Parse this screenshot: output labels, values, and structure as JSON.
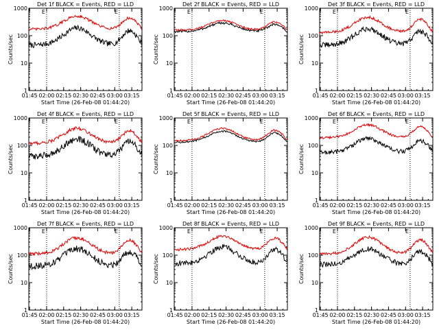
{
  "chart_data": [
    {
      "type": "line",
      "title": "Det 1f BLACK = Events, RED = LLD",
      "detector": "1f",
      "xlabel": "Start Time (26-Feb-08 01:44:20)",
      "ylabel": "Counts/sec",
      "x_ticks": [
        "01:45",
        "02:00",
        "02:15",
        "02:30",
        "02:45",
        "03:00",
        "03:15"
      ],
      "y_ticks": [
        "1",
        "10",
        "100",
        "1000"
      ],
      "yscale": "log",
      "ylim": [
        1,
        1000
      ],
      "xlim": [
        "01:44:20",
        "03:24:00"
      ],
      "markers": [
        "02:00",
        "03:04"
      ],
      "marker_labels": [
        "E",
        "E"
      ],
      "series": [
        {
          "name": "Events",
          "color": "#000000",
          "base": 45,
          "peak": 190,
          "noise": 0.1
        },
        {
          "name": "LLD",
          "color": "#e00000",
          "base": 170,
          "peak": 520,
          "noise": 0.05
        }
      ]
    },
    {
      "type": "line",
      "title": "Det 2f BLACK = Events, RED = LLD",
      "detector": "2f",
      "xlabel": "Start Time (26-Feb-08 01:44:20)",
      "ylabel": "Counts/sec",
      "x_ticks": [
        "01:45",
        "02:00",
        "02:15",
        "02:30",
        "02:45",
        "03:00",
        "03:15"
      ],
      "y_ticks": [
        "1",
        "10",
        "100",
        "1000"
      ],
      "yscale": "log",
      "ylim": [
        1,
        1000
      ],
      "xlim": [
        "01:44:20",
        "03:24:00"
      ],
      "markers": [
        "02:00",
        "03:04"
      ],
      "marker_labels": [
        "E",
        "E"
      ],
      "series": [
        {
          "name": "Events",
          "color": "#000000",
          "base": 140,
          "peak": 290,
          "noise": 0.04
        },
        {
          "name": "LLD",
          "color": "#e00000",
          "base": 160,
          "peak": 360,
          "noise": 0.03
        }
      ]
    },
    {
      "type": "line",
      "title": "Det 3f BLACK = Events, RED = LLD",
      "detector": "3f",
      "xlabel": "Start Time (26-Feb-08 01:44:20)",
      "ylabel": "Counts/sec",
      "x_ticks": [
        "01:45",
        "02:00",
        "02:15",
        "02:30",
        "02:45",
        "03:00",
        "03:15"
      ],
      "y_ticks": [
        "1",
        "10",
        "100",
        "1000"
      ],
      "yscale": "log",
      "ylim": [
        1,
        1000
      ],
      "xlim": [
        "01:44:20",
        "03:24:00"
      ],
      "markers": [
        "02:00",
        "03:04"
      ],
      "marker_labels": [
        "E",
        "E"
      ],
      "series": [
        {
          "name": "Events",
          "color": "#000000",
          "base": 45,
          "peak": 180,
          "noise": 0.1
        },
        {
          "name": "LLD",
          "color": "#e00000",
          "base": 130,
          "peak": 470,
          "noise": 0.05
        }
      ]
    },
    {
      "type": "line",
      "title": "Det 4f BLACK = Events, RED = LLD",
      "detector": "4f",
      "xlabel": "Start Time (26-Feb-08 01:44:20)",
      "ylabel": "Counts/sec",
      "x_ticks": [
        "01:45",
        "02:00",
        "02:15",
        "02:30",
        "02:45",
        "03:00",
        "03:15"
      ],
      "y_ticks": [
        "1",
        "10",
        "100",
        "1000"
      ],
      "yscale": "log",
      "ylim": [
        1,
        1000
      ],
      "xlim": [
        "01:44:20",
        "03:24:00"
      ],
      "markers": [
        "02:00",
        "03:04"
      ],
      "marker_labels": [
        "E",
        "E"
      ],
      "series": [
        {
          "name": "Events",
          "color": "#000000",
          "base": 40,
          "peak": 170,
          "noise": 0.12
        },
        {
          "name": "LLD",
          "color": "#e00000",
          "base": 120,
          "peak": 420,
          "noise": 0.06
        }
      ]
    },
    {
      "type": "line",
      "title": "Det 5f BLACK = Events, RED = LLD",
      "detector": "5f",
      "xlabel": "Start Time (26-Feb-08 01:44:20)",
      "ylabel": "Counts/sec",
      "x_ticks": [
        "01:45",
        "02:00",
        "02:15",
        "02:30",
        "02:45",
        "03:00",
        "03:15"
      ],
      "y_ticks": [
        "1",
        "10",
        "100",
        "1000"
      ],
      "yscale": "log",
      "ylim": [
        1,
        1000
      ],
      "xlim": [
        "01:44:20",
        "03:24:00"
      ],
      "markers": [
        "02:00",
        "03:04"
      ],
      "marker_labels": [
        "E",
        "E"
      ],
      "series": [
        {
          "name": "Events",
          "color": "#000000",
          "base": 130,
          "peak": 330,
          "noise": 0.03
        },
        {
          "name": "LLD",
          "color": "#e00000",
          "base": 150,
          "peak": 420,
          "noise": 0.03
        }
      ]
    },
    {
      "type": "line",
      "title": "Det 6f BLACK = Events, RED = LLD",
      "detector": "6f",
      "xlabel": "Start Time (26-Feb-08 01:44:20)",
      "ylabel": "Counts/sec",
      "x_ticks": [
        "01:45",
        "02:00",
        "02:15",
        "02:30",
        "02:45",
        "03:00",
        "03:15"
      ],
      "y_ticks": [
        "1",
        "10",
        "100",
        "1000"
      ],
      "yscale": "log",
      "ylim": [
        1,
        1000
      ],
      "xlim": [
        "01:44:20",
        "03:24:00"
      ],
      "markers": [
        "02:00",
        "03:04"
      ],
      "marker_labels": [
        "E",
        "E"
      ],
      "series": [
        {
          "name": "Events",
          "color": "#000000",
          "base": 55,
          "peak": 180,
          "noise": 0.08
        },
        {
          "name": "LLD",
          "color": "#e00000",
          "base": 190,
          "peak": 560,
          "noise": 0.04
        }
      ]
    },
    {
      "type": "line",
      "title": "Det 7f BLACK = Events, RED = LLD",
      "detector": "7f",
      "xlabel": "Start Time (26-Feb-08 01:44:20)",
      "ylabel": "Counts/sec",
      "x_ticks": [
        "01:45",
        "02:00",
        "02:15",
        "02:30",
        "02:45",
        "03:00",
        "03:15"
      ],
      "y_ticks": [
        "1",
        "10",
        "100",
        "1000"
      ],
      "yscale": "log",
      "ylim": [
        1,
        1000
      ],
      "xlim": [
        "01:44:20",
        "03:24:00"
      ],
      "markers": [
        "02:00",
        "03:04"
      ],
      "marker_labels": [
        "E",
        "E"
      ],
      "series": [
        {
          "name": "Events",
          "color": "#000000",
          "base": 40,
          "peak": 170,
          "noise": 0.12
        },
        {
          "name": "LLD",
          "color": "#e00000",
          "base": 110,
          "peak": 430,
          "noise": 0.06
        }
      ]
    },
    {
      "type": "line",
      "title": "Det 8f BLACK = Events, RED = LLD",
      "detector": "8f",
      "xlabel": "Start Time (26-Feb-08 01:44:20)",
      "ylabel": "Counts/sec",
      "x_ticks": [
        "01:45",
        "02:00",
        "02:15",
        "02:30",
        "02:45",
        "03:00",
        "03:15"
      ],
      "y_ticks": [
        "1",
        "10",
        "100",
        "1000"
      ],
      "yscale": "log",
      "ylim": [
        1,
        1000
      ],
      "xlim": [
        "01:44:20",
        "03:24:00"
      ],
      "markers": [
        "02:00",
        "03:04"
      ],
      "marker_labels": [
        "E",
        "E"
      ],
      "series": [
        {
          "name": "Events",
          "color": "#000000",
          "base": 50,
          "peak": 200,
          "noise": 0.1
        },
        {
          "name": "LLD",
          "color": "#e00000",
          "base": 160,
          "peak": 500,
          "noise": 0.05
        }
      ]
    },
    {
      "type": "line",
      "title": "Det 9f BLACK = Events, RED = LLD",
      "detector": "9f",
      "xlabel": "Start Time (26-Feb-08 01:44:20)",
      "ylabel": "Counts/sec",
      "x_ticks": [
        "01:45",
        "02:00",
        "02:15",
        "02:30",
        "02:45",
        "03:00",
        "03:15"
      ],
      "y_ticks": [
        "1",
        "10",
        "100",
        "1000"
      ],
      "yscale": "log",
      "ylim": [
        1,
        1000
      ],
      "xlim": [
        "01:44:20",
        "03:24:00"
      ],
      "markers": [
        "02:00",
        "03:04"
      ],
      "marker_labels": [
        "E",
        "E"
      ],
      "series": [
        {
          "name": "Events",
          "color": "#000000",
          "base": 45,
          "peak": 170,
          "noise": 0.1
        },
        {
          "name": "LLD",
          "color": "#e00000",
          "base": 110,
          "peak": 450,
          "noise": 0.05
        }
      ]
    }
  ]
}
